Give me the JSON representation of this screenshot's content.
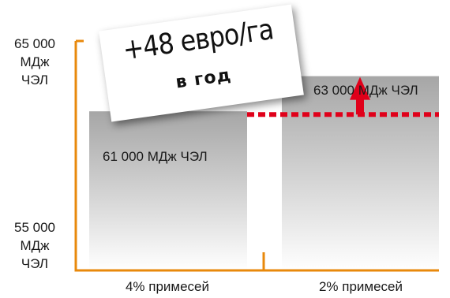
{
  "chart_data": {
    "type": "bar",
    "title": "",
    "categories": [
      "4% примесей",
      "2% примесей"
    ],
    "values": [
      61000,
      63000
    ],
    "value_labels": [
      "61 000 МДж ЧЭЛ",
      "63 000 МДж ЧЭЛ"
    ],
    "ylim": [
      55000,
      65000
    ],
    "ytick_labels": [
      "65 000\nМДж\nЧЭЛ",
      "55 000\nМДж\nЧЭЛ"
    ],
    "reference_line": {
      "value": 61000,
      "style": "dotted",
      "color": "#e0001a"
    },
    "increase_arrow": {
      "from": 61000,
      "to": 63000,
      "color": "#e0001a"
    },
    "axis_color": "#e8890c",
    "callout": {
      "main": "+48 евро/га",
      "sub": "в год"
    }
  }
}
